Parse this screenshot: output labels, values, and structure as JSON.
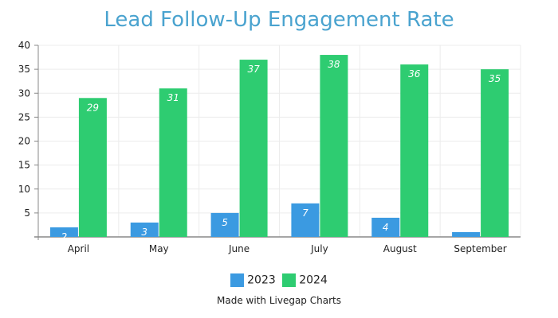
{
  "chart_data": {
    "type": "bar",
    "title": "Lead Follow-Up Engagement Rate",
    "categories": [
      "April",
      "May",
      "June",
      "July",
      "August",
      "September"
    ],
    "series": [
      {
        "name": "2023",
        "color": "#3b9ae1",
        "values": [
          2,
          3,
          5,
          7,
          4,
          1
        ]
      },
      {
        "name": "2024",
        "color": "#2ecc71",
        "values": [
          29,
          31,
          37,
          38,
          36,
          35
        ]
      }
    ],
    "ylim": [
      0,
      40
    ],
    "yticks": [
      0,
      5,
      10,
      15,
      20,
      25,
      30,
      35,
      40
    ],
    "xlabel": "",
    "ylabel": "",
    "grid": true,
    "legend_position": "bottom-center"
  },
  "credit": "Made with Livegap Charts"
}
